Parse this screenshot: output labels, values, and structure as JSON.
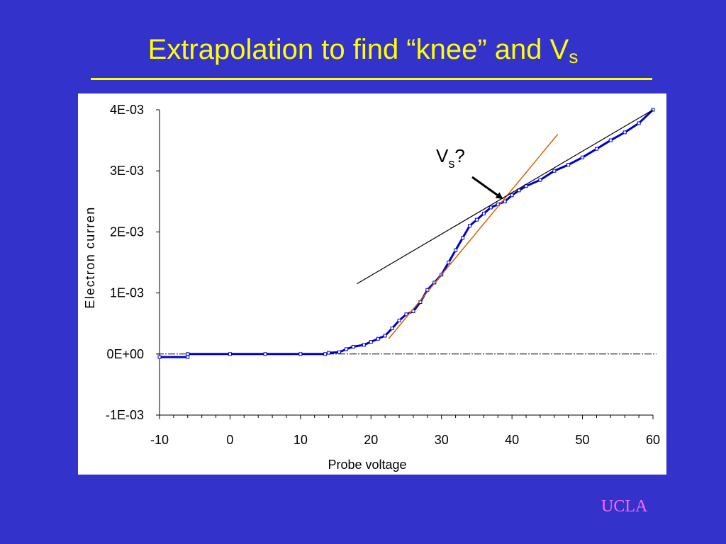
{
  "slide": {
    "title": "Extrapolation to find “knee” and V",
    "title_sub": "s",
    "footer": "UCLA"
  },
  "colors": {
    "background": "#3333cc",
    "title": "#ffff00",
    "footer": "#ff66ff",
    "data": "#0000cc",
    "fit_line_steep": "#cc6600",
    "fit_line_shallow": "#000000"
  },
  "chart_data": {
    "type": "scatter",
    "xlabel": "Probe voltage",
    "ylabel": "Electron curren",
    "xlim": [
      -10,
      60
    ],
    "ylim": [
      -0.001,
      0.004
    ],
    "x_ticks": [
      "-10",
      "0",
      "10",
      "20",
      "30",
      "40",
      "50",
      "60"
    ],
    "y_ticks": [
      "4E-03",
      "3E-03",
      "2E-03",
      "1E-03",
      "0E+00",
      "-1E-03"
    ],
    "series": [
      {
        "points": [
          [
            -10,
            -5e-05
          ],
          [
            -6,
            -5e-05
          ],
          [
            -6,
            0.0
          ],
          [
            0,
            0.0
          ],
          [
            5,
            0.0
          ],
          [
            10,
            0.0
          ],
          [
            13.5,
            0.0
          ],
          [
            14,
            2e-05
          ],
          [
            15.5,
            3e-05
          ],
          [
            16.5,
            8e-05
          ],
          [
            17.5,
            0.00012
          ],
          [
            19,
            0.00015
          ],
          [
            20,
            0.0002
          ],
          [
            21,
            0.00025
          ],
          [
            22,
            0.0003
          ],
          [
            23,
            0.00042
          ],
          [
            24,
            0.00055
          ],
          [
            25,
            0.00065
          ],
          [
            26,
            0.0007
          ],
          [
            27,
            0.00085
          ],
          [
            28,
            0.00105
          ],
          [
            29,
            0.00117
          ],
          [
            30,
            0.0013
          ],
          [
            31,
            0.0015
          ],
          [
            32,
            0.0017
          ],
          [
            33,
            0.0019
          ],
          [
            34,
            0.0021
          ],
          [
            35,
            0.0022
          ],
          [
            36,
            0.0023
          ],
          [
            37,
            0.0024
          ],
          [
            38,
            0.00245
          ],
          [
            39,
            0.0025
          ],
          [
            40,
            0.0026
          ],
          [
            41,
            0.00268
          ],
          [
            42,
            0.00275
          ],
          [
            44,
            0.00285
          ],
          [
            46,
            0.003
          ],
          [
            48,
            0.0031
          ],
          [
            50,
            0.00322
          ],
          [
            52,
            0.00336
          ],
          [
            54,
            0.0035
          ],
          [
            56,
            0.00363
          ],
          [
            58,
            0.00378
          ],
          [
            60,
            0.004
          ]
        ]
      }
    ],
    "fit_lines": [
      {
        "x1": 22.5,
        "y1": 0.00025,
        "x2": 46.5,
        "y2": 0.0036,
        "color": "#cc6600"
      },
      {
        "x1": 18,
        "y1": 0.00115,
        "x2": 60,
        "y2": 0.004,
        "color": "#000000"
      }
    ],
    "zero_line": true,
    "annotations": [
      {
        "text": "V",
        "sub": "s",
        "suffix": "?"
      }
    ]
  }
}
